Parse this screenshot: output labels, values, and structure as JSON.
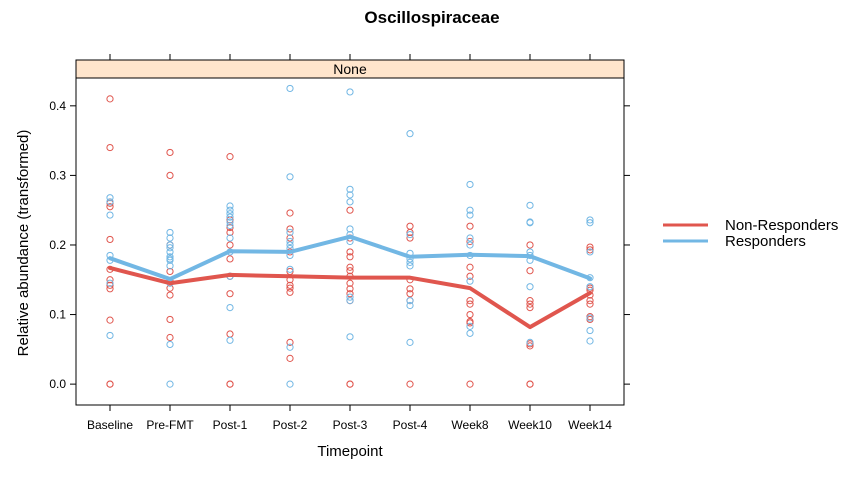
{
  "chart_data": {
    "type": "line",
    "title": "Oscillospiraceae",
    "panel_label": "None",
    "xlabel": "Timepoint",
    "ylabel": "Relative abundance (transformed)",
    "categories": [
      "Baseline",
      "Pre-FMT",
      "Post-1",
      "Post-2",
      "Post-3",
      "Post-4",
      "Week8",
      "Week10",
      "Week14"
    ],
    "ylim": [
      -0.03,
      0.44
    ],
    "yticks": [
      0.0,
      0.1,
      0.2,
      0.3,
      0.4
    ],
    "ytick_labels": [
      "0.0",
      "0.1",
      "0.2",
      "0.3",
      "0.4"
    ],
    "legend_position": "right",
    "strip_color": "#ffe5cc",
    "series": [
      {
        "name": "Non-Responders",
        "color": "#e0564e",
        "line": [
          0.167,
          0.145,
          0.157,
          0.155,
          0.153,
          0.153,
          0.138,
          0.082,
          0.131
        ],
        "points": [
          [
            0.41,
            0.34,
            0.26,
            0.255,
            0.208,
            0.165,
            0.15,
            0.142,
            0.137,
            0.092,
            0.0,
            0.0
          ],
          [
            0.333,
            0.3,
            0.2,
            0.162,
            0.148,
            0.138,
            0.128,
            0.093,
            0.067
          ],
          [
            0.327,
            0.236,
            0.225,
            0.218,
            0.2,
            0.18,
            0.155,
            0.13,
            0.072,
            0.0,
            0.0
          ],
          [
            0.246,
            0.223,
            0.21,
            0.19,
            0.162,
            0.15,
            0.142,
            0.138,
            0.132,
            0.06,
            0.037
          ],
          [
            0.25,
            0.21,
            0.19,
            0.183,
            0.168,
            0.163,
            0.155,
            0.145,
            0.137,
            0.13,
            0.12,
            0.0,
            0.0
          ],
          [
            0.227,
            0.218,
            0.21,
            0.15,
            0.137,
            0.13,
            0.12,
            0.0
          ],
          [
            0.227,
            0.205,
            0.168,
            0.155,
            0.12,
            0.115,
            0.1,
            0.09,
            0.088,
            0.0
          ],
          [
            0.2,
            0.163,
            0.12,
            0.115,
            0.11,
            0.058,
            0.055,
            0.0,
            0.0
          ],
          [
            0.197,
            0.193,
            0.138,
            0.135,
            0.128,
            0.12,
            0.115,
            0.097,
            0.093
          ]
        ]
      },
      {
        "name": "Responders",
        "color": "#72b7e4",
        "line": [
          0.181,
          0.151,
          0.191,
          0.19,
          0.212,
          0.183,
          0.186,
          0.184,
          0.152
        ],
        "points": [
          [
            0.268,
            0.262,
            0.243,
            0.185,
            0.178,
            0.145,
            0.07
          ],
          [
            0.218,
            0.21,
            0.2,
            0.196,
            0.19,
            0.183,
            0.18,
            0.178,
            0.17,
            0.145,
            0.057,
            0.0
          ],
          [
            0.256,
            0.25,
            0.245,
            0.24,
            0.233,
            0.228,
            0.21,
            0.19,
            0.155,
            0.11,
            0.063
          ],
          [
            0.425,
            0.298,
            0.218,
            0.205,
            0.2,
            0.195,
            0.185,
            0.165,
            0.053,
            0.0
          ],
          [
            0.42,
            0.28,
            0.272,
            0.262,
            0.223,
            0.215,
            0.205,
            0.125,
            0.12,
            0.068
          ],
          [
            0.36,
            0.215,
            0.188,
            0.18,
            0.175,
            0.17,
            0.12,
            0.113,
            0.06
          ],
          [
            0.287,
            0.25,
            0.243,
            0.21,
            0.2,
            0.185,
            0.148,
            0.083,
            0.073
          ],
          [
            0.257,
            0.233,
            0.232,
            0.19,
            0.185,
            0.178,
            0.14,
            0.06
          ],
          [
            0.236,
            0.232,
            0.19,
            0.153,
            0.14,
            0.095,
            0.077,
            0.062
          ]
        ]
      }
    ]
  }
}
